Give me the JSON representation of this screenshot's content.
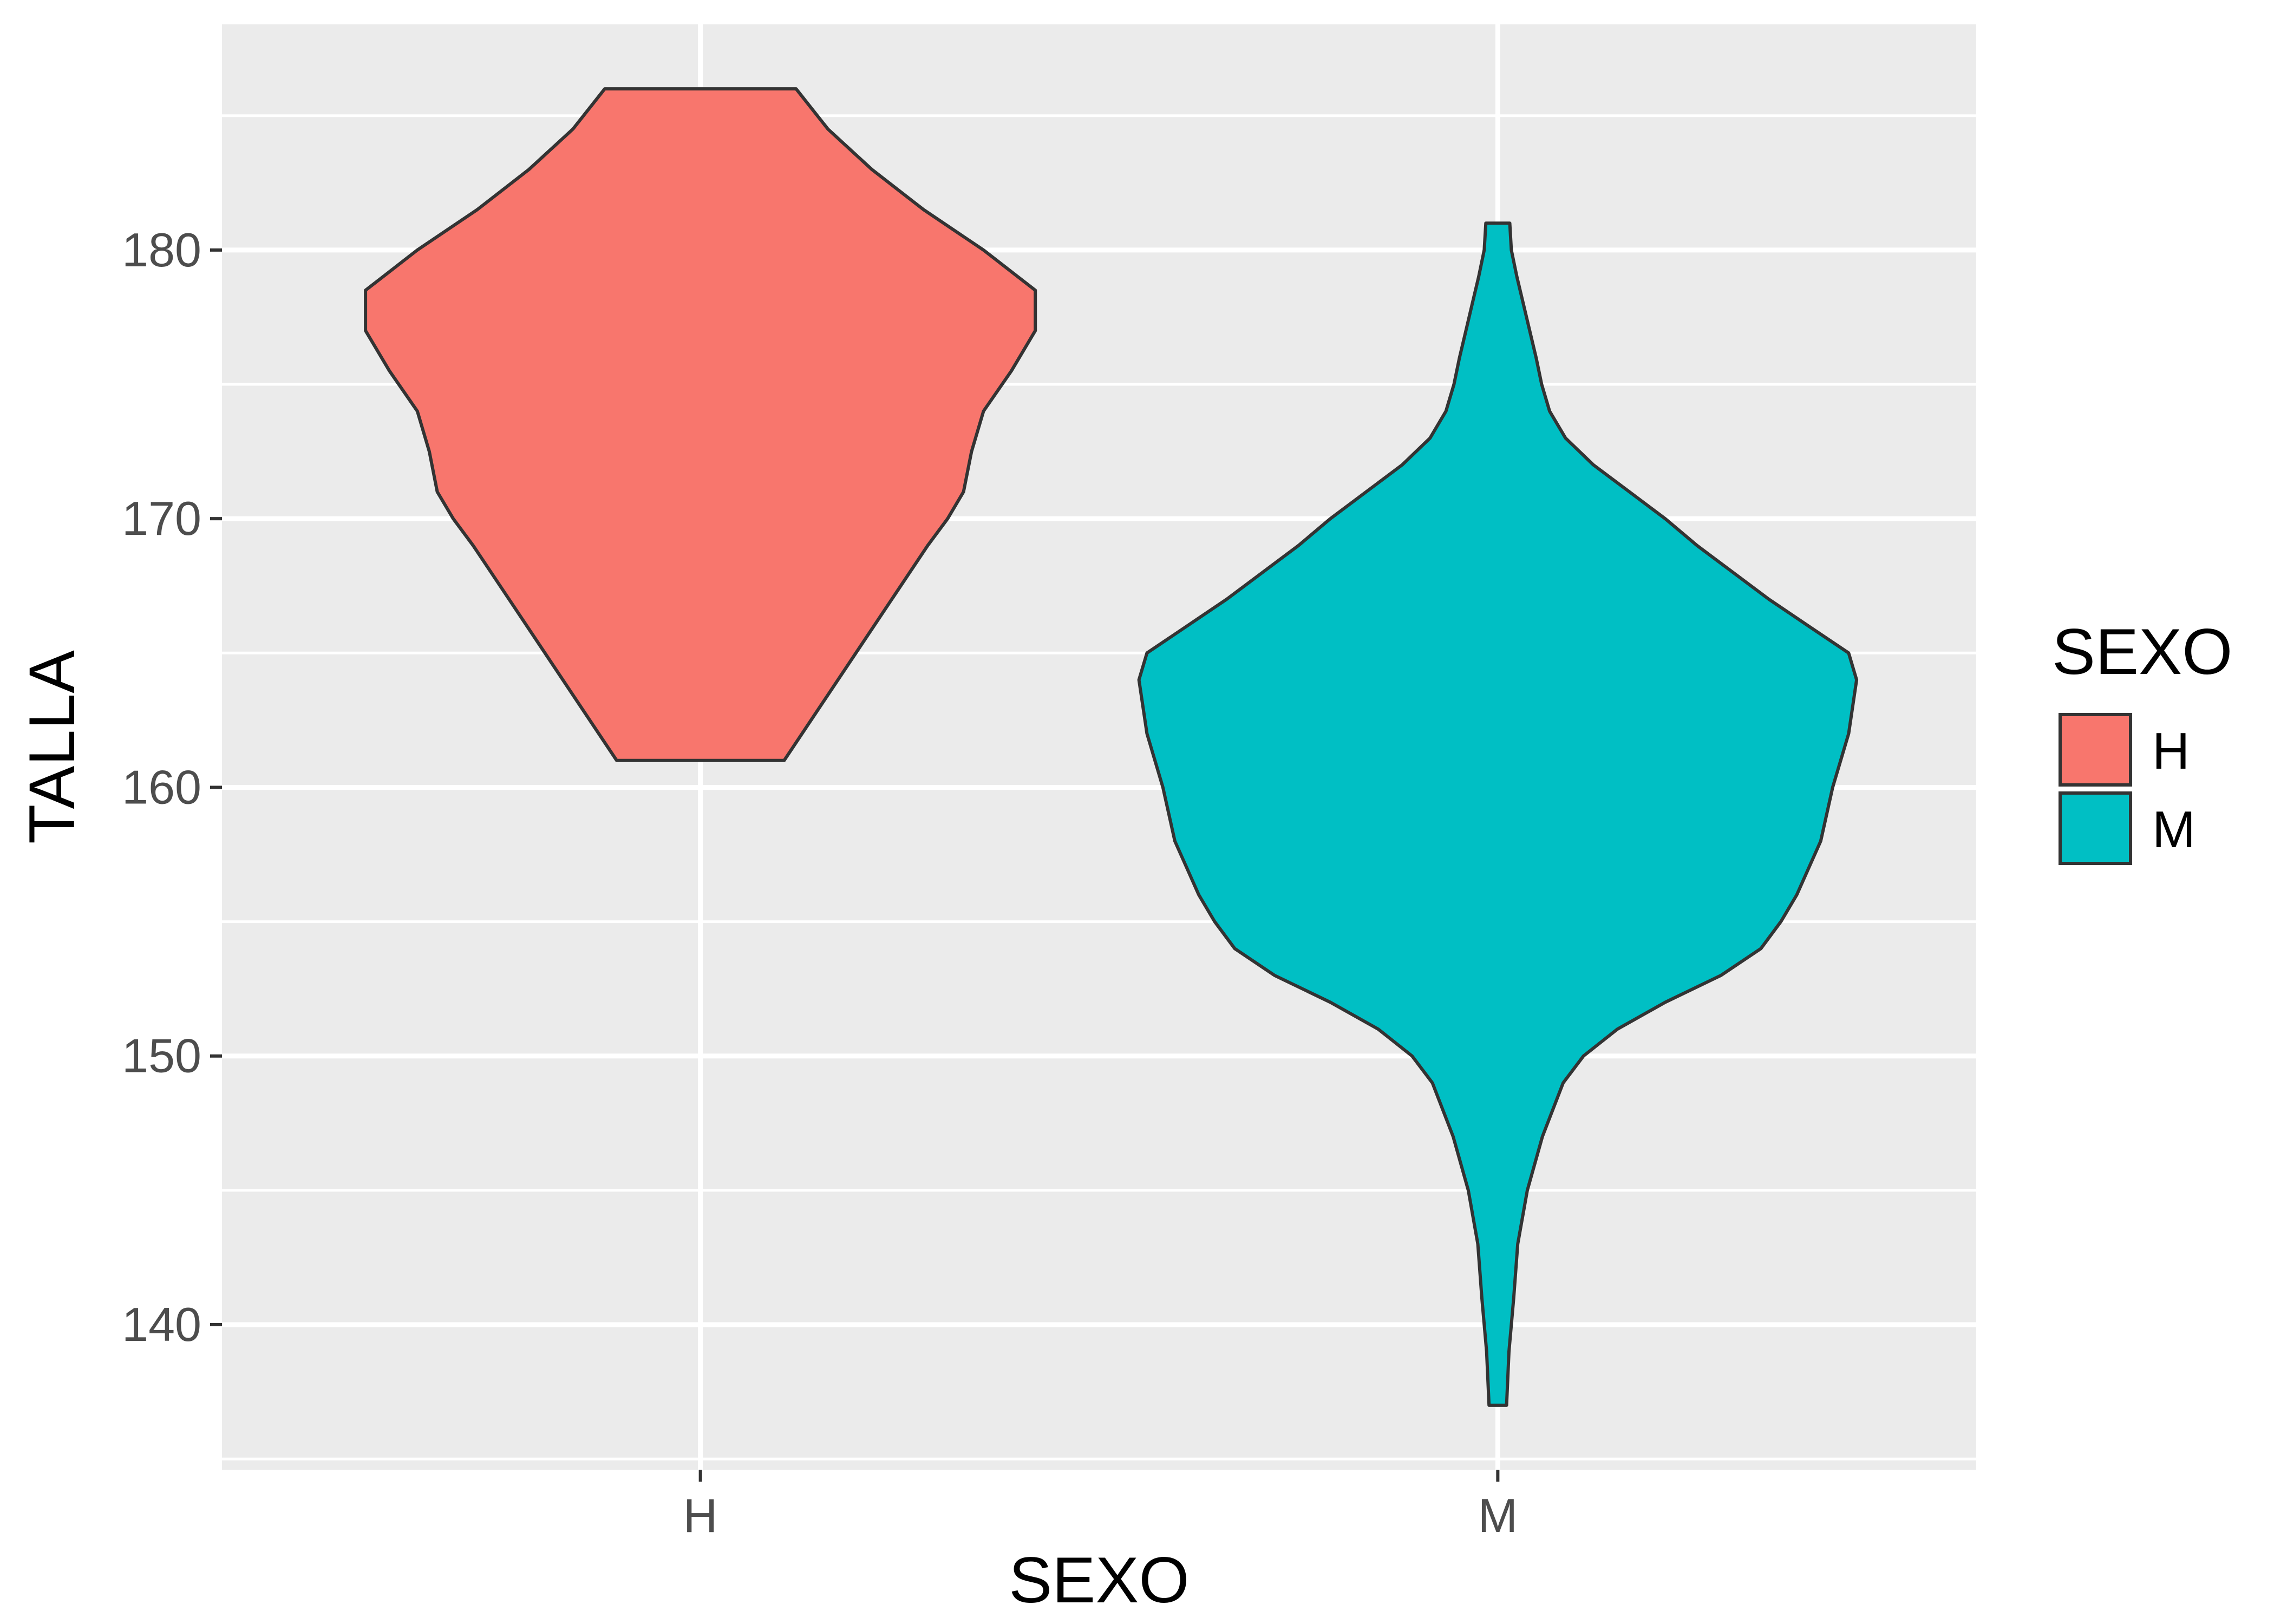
{
  "chart_data": {
    "type": "violin",
    "xlabel": "SEXO",
    "ylabel": "TALLA",
    "categories": [
      "H",
      "M"
    ],
    "ylim": [
      134.6,
      188.4
    ],
    "yticks": [
      140,
      150,
      160,
      170,
      180
    ],
    "ytick_labels": [
      "140",
      "150",
      "160",
      "170",
      "180"
    ],
    "grid": true,
    "legend": {
      "title": "SEXO",
      "position": "right",
      "items": [
        {
          "label": "H",
          "color": "#F8766D"
        },
        {
          "label": "M",
          "color": "#00BFC4"
        }
      ]
    },
    "series": [
      {
        "category": "H",
        "color": "#F8766D",
        "min": 161,
        "max": 186,
        "density_profile": [
          {
            "y": 161.0,
            "width": 0.21
          },
          {
            "y": 163.0,
            "width": 0.3
          },
          {
            "y": 165.0,
            "width": 0.39
          },
          {
            "y": 167.0,
            "width": 0.48
          },
          {
            "y": 169.0,
            "width": 0.57
          },
          {
            "y": 170.0,
            "width": 0.62
          },
          {
            "y": 171.0,
            "width": 0.66
          },
          {
            "y": 172.5,
            "width": 0.68
          },
          {
            "y": 174.0,
            "width": 0.71
          },
          {
            "y": 175.5,
            "width": 0.78
          },
          {
            "y": 177.0,
            "width": 0.84
          },
          {
            "y": 178.5,
            "width": 0.84
          },
          {
            "y": 180.0,
            "width": 0.71
          },
          {
            "y": 181.5,
            "width": 0.56
          },
          {
            "y": 183.0,
            "width": 0.43
          },
          {
            "y": 184.5,
            "width": 0.32
          },
          {
            "y": 186.0,
            "width": 0.24
          }
        ]
      },
      {
        "category": "M",
        "color": "#00BFC4",
        "min": 137,
        "max": 181,
        "density_profile": [
          {
            "y": 137.0,
            "width": 0.022
          },
          {
            "y": 139.0,
            "width": 0.028
          },
          {
            "y": 141.0,
            "width": 0.04
          },
          {
            "y": 143.0,
            "width": 0.05
          },
          {
            "y": 145.0,
            "width": 0.074
          },
          {
            "y": 147.0,
            "width": 0.112
          },
          {
            "y": 149.0,
            "width": 0.164
          },
          {
            "y": 150.0,
            "width": 0.215
          },
          {
            "y": 151.0,
            "width": 0.3
          },
          {
            "y": 152.0,
            "width": 0.42
          },
          {
            "y": 153.0,
            "width": 0.56
          },
          {
            "y": 154.0,
            "width": 0.66
          },
          {
            "y": 155.0,
            "width": 0.71
          },
          {
            "y": 156.0,
            "width": 0.75
          },
          {
            "y": 157.0,
            "width": 0.78
          },
          {
            "y": 158.0,
            "width": 0.81
          },
          {
            "y": 160.0,
            "width": 0.84
          },
          {
            "y": 162.0,
            "width": 0.88
          },
          {
            "y": 164.0,
            "width": 0.9
          },
          {
            "y": 165.0,
            "width": 0.88
          },
          {
            "y": 166.0,
            "width": 0.78
          },
          {
            "y": 167.0,
            "width": 0.68
          },
          {
            "y": 168.0,
            "width": 0.59
          },
          {
            "y": 169.0,
            "width": 0.5
          },
          {
            "y": 170.0,
            "width": 0.42
          },
          {
            "y": 171.0,
            "width": 0.33
          },
          {
            "y": 172.0,
            "width": 0.24
          },
          {
            "y": 173.0,
            "width": 0.17
          },
          {
            "y": 174.0,
            "width": 0.13
          },
          {
            "y": 175.0,
            "width": 0.11
          },
          {
            "y": 176.0,
            "width": 0.096
          },
          {
            "y": 177.0,
            "width": 0.08
          },
          {
            "y": 178.0,
            "width": 0.064
          },
          {
            "y": 179.0,
            "width": 0.048
          },
          {
            "y": 180.0,
            "width": 0.034
          },
          {
            "y": 181.0,
            "width": 0.03
          }
        ]
      }
    ]
  }
}
